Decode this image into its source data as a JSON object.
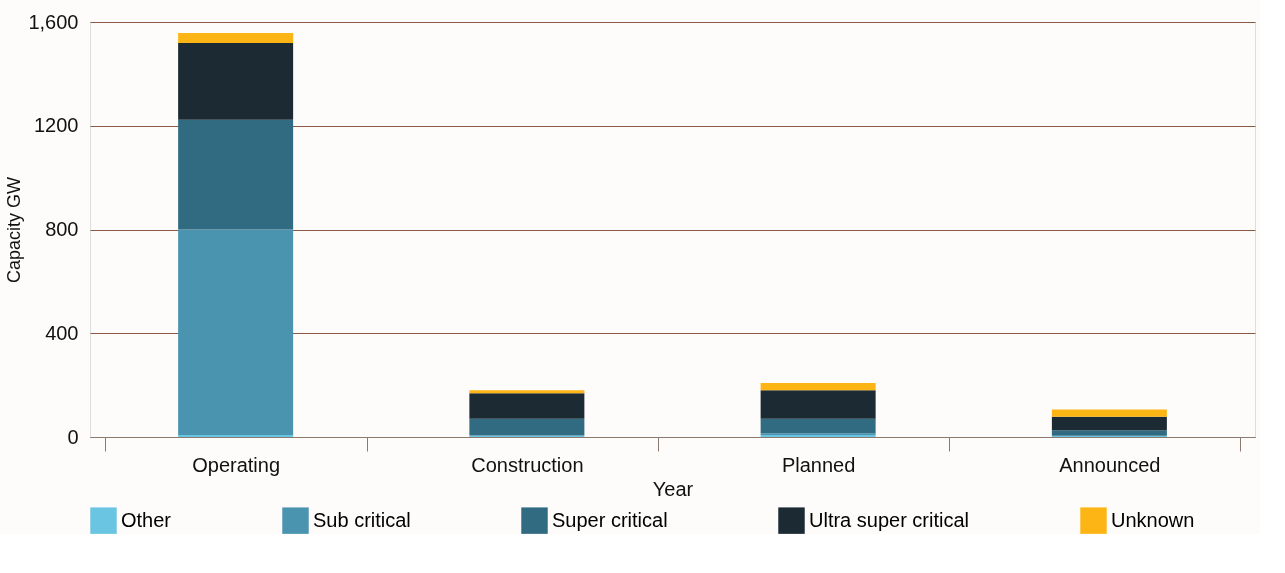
{
  "chart_data": {
    "type": "bar",
    "stacked": true,
    "xlabel": "Year",
    "ylabel": "Capacity GW",
    "categories": [
      "Operating",
      "Construction",
      "Planned",
      "Announced"
    ],
    "series": [
      {
        "name": "Other",
        "color": "#6ac5e2",
        "values": [
          8,
          6,
          8,
          5
        ]
      },
      {
        "name": "Sub critical",
        "color": "#4a94b0",
        "values": [
          792,
          0,
          6,
          0
        ]
      },
      {
        "name": "Super critical",
        "color": "#316b81",
        "values": [
          423,
          64,
          56,
          21
        ]
      },
      {
        "name": "Ultra super critical",
        "color": "#1b2a33",
        "values": [
          296,
          99,
          110,
          52
        ]
      },
      {
        "name": "Unknown",
        "color": "#fdb515",
        "values": [
          39,
          11,
          28,
          28
        ]
      }
    ],
    "ylim": [
      0,
      1600
    ],
    "yticks": [
      0,
      400,
      800,
      1200,
      {
        "value": 1600,
        "label": "1,600"
      }
    ],
    "grid": "y",
    "legend": "bottom"
  }
}
